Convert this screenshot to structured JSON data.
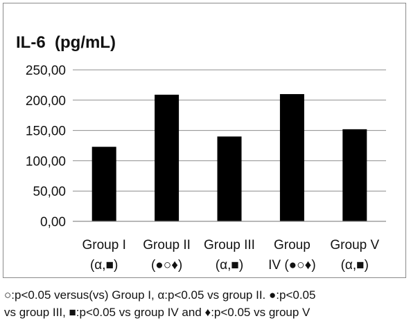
{
  "chart_data": {
    "type": "bar",
    "title": "IL-6  (pg/mL)",
    "xlabel": "",
    "ylabel": "",
    "ylim": [
      0,
      250
    ],
    "yticks": [
      "0,00",
      "50,00",
      "100,00",
      "150,00",
      "200,00",
      "250,00"
    ],
    "ytick_values": [
      0,
      50,
      100,
      150,
      200,
      250
    ],
    "grid": true,
    "bar_color": "#000000",
    "grid_color": "#8c8c8c",
    "categories": [
      {
        "line1": "Group I",
        "line2": "(α,■)"
      },
      {
        "line1": "Group II",
        "line2": "(●○♦)"
      },
      {
        "line1": "Group III",
        "line2": "(α,■)"
      },
      {
        "line1": "Group",
        "line2": "IV  (●○♦)"
      },
      {
        "line1": "Group V",
        "line2": "(α,■)"
      }
    ],
    "values": [
      123,
      209,
      140,
      210,
      152
    ]
  },
  "caption": {
    "line1": "○:p<0.05 versus(vs) Group I, α:p<0.05 vs group II. ●:p<0.05",
    "line2": "vs group III, ■:p<0.05 vs group IV and ♦:p<0.05 vs group V"
  }
}
